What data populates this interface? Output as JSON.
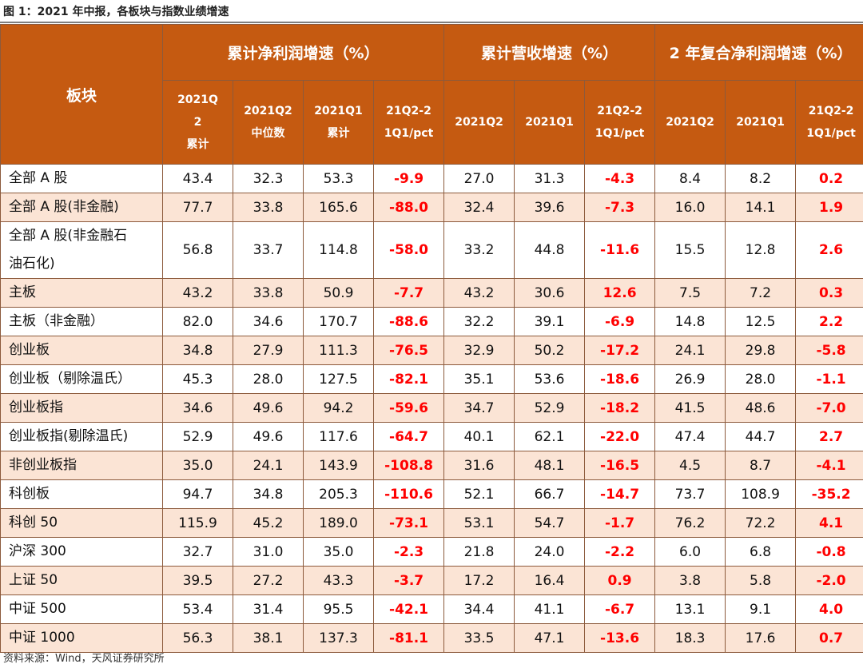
{
  "figure_title": "图 1：2021 年中报，各板块与指数业绩增速",
  "header": {
    "block_label": "板块",
    "groups": [
      "累计净利润增速（%）",
      "累计营收增速（%）",
      "2 年复合净利润增速（%）"
    ],
    "sub": [
      [
        "2021Q",
        "2",
        "累计"
      ],
      [
        "2021Q2",
        "中位数"
      ],
      [
        "2021Q1",
        "累计"
      ],
      [
        "21Q2-2",
        "1Q1/pct"
      ],
      [
        "2021Q2"
      ],
      [
        "2021Q1"
      ],
      [
        "21Q2-2",
        "1Q1/pct"
      ],
      [
        "2021Q2"
      ],
      [
        "2021Q1"
      ],
      [
        "21Q2-2",
        "1Q1/pct"
      ]
    ]
  },
  "rows": [
    {
      "name": [
        "全部 A 股"
      ],
      "values": [
        "43.4",
        "32.3",
        "53.3",
        "-9.9",
        "27.0",
        "31.3",
        "-4.3",
        "8.4",
        "8.2",
        "0.2"
      ]
    },
    {
      "name": [
        "全部 A 股(非金融)"
      ],
      "values": [
        "77.7",
        "33.8",
        "165.6",
        "-88.0",
        "32.4",
        "39.6",
        "-7.3",
        "16.0",
        "14.1",
        "1.9"
      ]
    },
    {
      "name": [
        "全部 A 股(非金融石",
        "油石化)"
      ],
      "values": [
        "56.8",
        "33.7",
        "114.8",
        "-58.0",
        "33.2",
        "44.8",
        "-11.6",
        "15.5",
        "12.8",
        "2.6"
      ]
    },
    {
      "name": [
        "主板"
      ],
      "values": [
        "43.2",
        "33.8",
        "50.9",
        "-7.7",
        "43.2",
        "30.6",
        "12.6",
        "7.5",
        "7.2",
        "0.3"
      ]
    },
    {
      "name": [
        "主板（非金融）"
      ],
      "values": [
        "82.0",
        "34.6",
        "170.7",
        "-88.6",
        "32.2",
        "39.1",
        "-6.9",
        "14.8",
        "12.5",
        "2.2"
      ]
    },
    {
      "name": [
        "创业板"
      ],
      "values": [
        "34.8",
        "27.9",
        "111.3",
        "-76.5",
        "32.9",
        "50.2",
        "-17.2",
        "24.1",
        "29.8",
        "-5.8"
      ]
    },
    {
      "name": [
        "创业板（剔除温氏）"
      ],
      "values": [
        "45.3",
        "28.0",
        "127.5",
        "-82.1",
        "35.1",
        "53.6",
        "-18.6",
        "26.9",
        "28.0",
        "-1.1"
      ]
    },
    {
      "name": [
        "创业板指"
      ],
      "values": [
        "34.6",
        "49.6",
        "94.2",
        "-59.6",
        "34.7",
        "52.9",
        "-18.2",
        "41.5",
        "48.6",
        "-7.0"
      ]
    },
    {
      "name": [
        "创业板指(剔除温氏)"
      ],
      "values": [
        "52.9",
        "49.6",
        "117.6",
        "-64.7",
        "40.1",
        "62.1",
        "-22.0",
        "47.4",
        "44.7",
        "2.7"
      ]
    },
    {
      "name": [
        "非创业板指"
      ],
      "values": [
        "35.0",
        "24.1",
        "143.9",
        "-108.8",
        "31.6",
        "48.1",
        "-16.5",
        "4.5",
        "8.7",
        "-4.1"
      ]
    },
    {
      "name": [
        "科创板"
      ],
      "values": [
        "94.7",
        "34.8",
        "205.3",
        "-110.6",
        "52.1",
        "66.7",
        "-14.7",
        "73.7",
        "108.9",
        "-35.2"
      ]
    },
    {
      "name": [
        "科创 50"
      ],
      "values": [
        "115.9",
        "45.2",
        "189.0",
        "-73.1",
        "53.1",
        "54.7",
        "-1.7",
        "76.2",
        "72.2",
        "4.1"
      ]
    },
    {
      "name": [
        "沪深 300"
      ],
      "values": [
        "32.7",
        "31.0",
        "35.0",
        "-2.3",
        "21.8",
        "24.0",
        "-2.2",
        "6.0",
        "6.8",
        "-0.8"
      ]
    },
    {
      "name": [
        "上证 50"
      ],
      "values": [
        "39.5",
        "27.2",
        "43.3",
        "-3.7",
        "17.2",
        "16.4",
        "0.9",
        "3.8",
        "5.8",
        "-2.0"
      ]
    },
    {
      "name": [
        "中证 500"
      ],
      "values": [
        "53.4",
        "31.4",
        "95.5",
        "-42.1",
        "34.4",
        "41.1",
        "-6.7",
        "13.1",
        "9.1",
        "4.0"
      ]
    },
    {
      "name": [
        "中证 1000"
      ],
      "values": [
        "56.3",
        "38.1",
        "137.3",
        "-81.1",
        "33.5",
        "47.1",
        "-13.6",
        "18.3",
        "17.6",
        "0.7"
      ]
    }
  ],
  "source": "资料来源：Wind，天风证券研究所",
  "colors": {
    "header_bg": "#c55a11",
    "stripe_bg": "#fbe4d5",
    "highlight_text": "#ff0000"
  }
}
